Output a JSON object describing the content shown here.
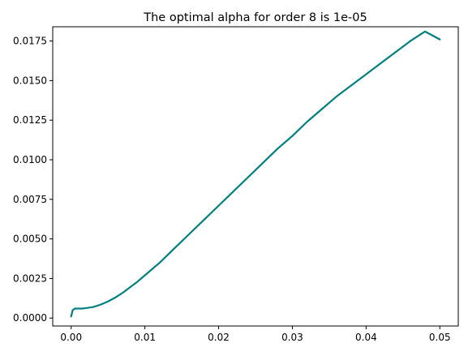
{
  "chart_data": {
    "type": "line",
    "title": "The optimal alpha for order 8 is 1e-05",
    "xlabel": "",
    "ylabel": "",
    "xlim": [
      -0.0025,
      0.0525
    ],
    "ylim": [
      -0.0005,
      0.0184
    ],
    "x_ticks": [
      0.0,
      0.01,
      0.02,
      0.03,
      0.04,
      0.05
    ],
    "x_tick_labels": [
      "0.00",
      "0.01",
      "0.02",
      "0.03",
      "0.04",
      "0.05"
    ],
    "y_ticks": [
      0.0,
      0.0025,
      0.005,
      0.0075,
      0.01,
      0.0125,
      0.015,
      0.0175
    ],
    "y_tick_labels": [
      "0.0000",
      "0.0025",
      "0.0050",
      "0.0075",
      "0.0100",
      "0.0125",
      "0.0150",
      "0.0175"
    ],
    "grid": false,
    "legend": "none",
    "series": [
      {
        "color": "#008080",
        "x": [
          0.0,
          0.0002,
          0.0005,
          0.001,
          0.0015,
          0.002,
          0.003,
          0.004,
          0.005,
          0.006,
          0.007,
          0.008,
          0.009,
          0.01,
          0.012,
          0.014,
          0.016,
          0.018,
          0.02,
          0.022,
          0.024,
          0.026,
          0.028,
          0.03,
          0.032,
          0.034,
          0.036,
          0.038,
          0.04,
          0.042,
          0.044,
          0.046,
          0.048,
          0.05
        ],
        "y": [
          0.0001,
          0.0005,
          0.0006,
          0.0006,
          0.0006,
          0.00063,
          0.0007,
          0.00085,
          0.00105,
          0.0013,
          0.0016,
          0.00195,
          0.0023,
          0.0027,
          0.0035,
          0.0044,
          0.0053,
          0.0062,
          0.0071,
          0.008,
          0.0089,
          0.0098,
          0.0107,
          0.0115,
          0.0124,
          0.0132,
          0.014,
          0.0147,
          0.0154,
          0.0161,
          0.0168,
          0.0175,
          0.0181,
          0.0176
        ]
      }
    ]
  }
}
